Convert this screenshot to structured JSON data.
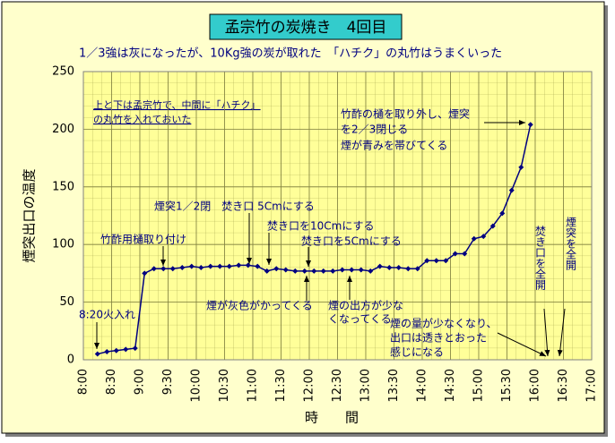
{
  "chart_data": {
    "type": "line",
    "title": "孟宗竹の炭焼き　4回目",
    "subtitle": "1／3強は灰になったが、10Kg強の炭が取れた　「ハチク」の丸竹はうまくいった",
    "note": [
      "上と下は孟宗竹で、中間に「ハチク」",
      "の丸竹を入れておいた"
    ],
    "x_label": "時　　間",
    "y_label": "煙突出口の温度",
    "x": [
      495,
      505,
      515,
      525,
      535,
      545,
      555,
      565,
      575,
      585,
      595,
      605,
      615,
      625,
      635,
      645,
      655,
      665,
      675,
      685,
      695,
      705,
      715,
      725,
      735,
      745,
      755,
      765,
      775,
      785,
      795,
      805,
      815,
      825,
      835,
      845,
      855,
      865,
      875,
      885,
      895,
      905,
      915,
      925,
      935,
      945,
      955
    ],
    "series": [
      {
        "color": "#000080",
        "values": [
          5,
          7,
          8,
          9,
          10,
          75,
          79,
          79,
          79,
          80,
          81,
          80,
          81,
          81,
          81,
          82,
          82,
          81,
          77,
          79,
          78,
          77,
          77,
          77,
          77,
          77,
          78,
          78,
          78,
          77,
          81,
          80,
          80,
          79,
          79,
          86,
          86,
          86,
          92,
          92,
          105,
          107,
          116,
          127,
          147,
          167,
          204
        ]
      }
    ],
    "xlim": [
      480,
      1020
    ],
    "xticks": [
      {
        "value": 480,
        "label": "8:00"
      },
      {
        "value": 510,
        "label": "8:30"
      },
      {
        "value": 540,
        "label": "9:00"
      },
      {
        "value": 570,
        "label": "9:30"
      },
      {
        "value": 600,
        "label": "10:00"
      },
      {
        "value": 630,
        "label": "10:30"
      },
      {
        "value": 660,
        "label": "11:00"
      },
      {
        "value": 690,
        "label": "11:30"
      },
      {
        "value": 720,
        "label": "12:00"
      },
      {
        "value": 750,
        "label": "12:30"
      },
      {
        "value": 780,
        "label": "13:00"
      },
      {
        "value": 810,
        "label": "13:30"
      },
      {
        "value": 840,
        "label": "14:00"
      },
      {
        "value": 870,
        "label": "14:30"
      },
      {
        "value": 900,
        "label": "15:00"
      },
      {
        "value": 930,
        "label": "15:30"
      },
      {
        "value": 960,
        "label": "16:00"
      },
      {
        "value": 990,
        "label": "16:30"
      },
      {
        "value": 1020,
        "label": "17:00"
      }
    ],
    "ylim": [
      0,
      250
    ],
    "yticks": [
      0,
      50,
      100,
      150,
      200,
      250
    ],
    "grid": true,
    "annotations": [
      [
        "8:20火入れ"
      ],
      [
        "竹酢用樋取り付け"
      ],
      [
        "煙突1／2閉　焚き口 5Cmにする"
      ],
      [
        "焚き口を10Cmにする"
      ],
      [
        "焚き口を5Cmにする"
      ],
      [
        "煙が灰色がかってくる"
      ],
      [
        "煙の出方が少な",
        "くなってくる"
      ],
      [
        "竹酢の樋を取り外し、煙突",
        "を2／3閉じる",
        "煙が青みを帯びてくる"
      ],
      [
        "煙の量が少なくなり、",
        "出口は透きとおった",
        "感じになる"
      ],
      [
        "焚き口を全開"
      ],
      [
        "煙突を全開"
      ]
    ]
  }
}
